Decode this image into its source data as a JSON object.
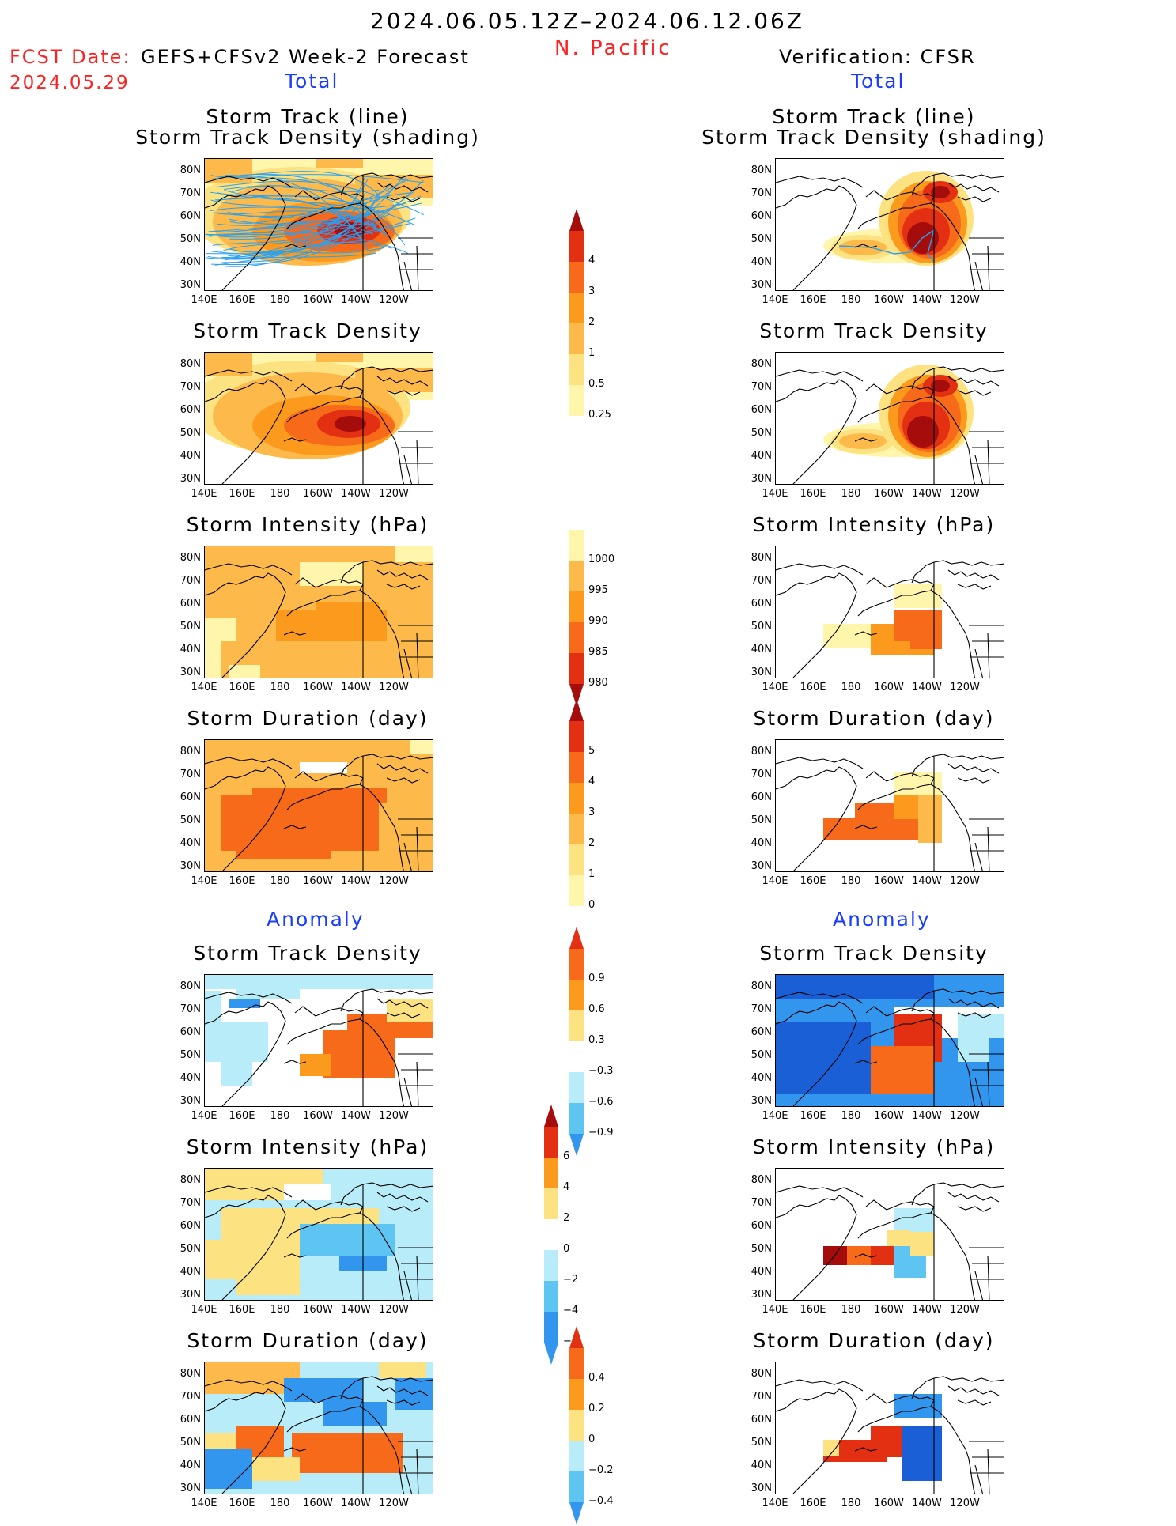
{
  "header": {
    "period": "2024.06.05.12Z–2024.06.12.06Z",
    "region": "N. Pacific",
    "fcst_label": "FCST Date:",
    "fcst_model": "GEFS+CFSv2 Week-2 Forecast",
    "fcst_date": "2024.05.29",
    "verification": "Verification: CFSR"
  },
  "sections": {
    "total_left": "Total",
    "total_right": "Total",
    "anomaly_left": "Anomaly",
    "anomaly_right": "Anomaly"
  },
  "titles": {
    "track_line": "Storm Track (line)",
    "track_shading": "Storm Track Density (shading)",
    "density": "Storm Track Density",
    "intensity": "Storm Intensity (hPa)",
    "duration": "Storm Duration (day)"
  },
  "axes": {
    "lat": [
      "80N",
      "70N",
      "60N",
      "50N",
      "40N",
      "30N"
    ],
    "lon": [
      "140E",
      "160E",
      "180",
      "160W",
      "140W",
      "120W"
    ]
  },
  "colorbars": {
    "density_total": [
      "4",
      "3",
      "2",
      "1",
      "0.5",
      "0.25"
    ],
    "intensity_total": [
      "1000",
      "995",
      "990",
      "985",
      "980"
    ],
    "duration_total": [
      "5",
      "4",
      "3",
      "2",
      "1",
      "0"
    ],
    "density_anom": [
      "0.9",
      "0.6",
      "0.3",
      "−0.3",
      "−0.6",
      "−0.9"
    ],
    "intensity_anom": [
      "6",
      "4",
      "2",
      "0",
      "−2",
      "−4",
      "−6"
    ],
    "duration_anom": [
      "0.4",
      "0.2",
      "0",
      "−0.2",
      "−0.4"
    ]
  },
  "colors": {
    "light_yellow": "#fff5ab",
    "yellow": "#fce280",
    "orange_light": "#fdb94a",
    "orange": "#fb9a1d",
    "orange_red": "#f66a1a",
    "red": "#e43012",
    "dark_red": "#a50d0d",
    "light_blue": "#b8ecf8",
    "mid_blue": "#5ec4f2",
    "blue": "#3296ef",
    "dark_blue": "#1a5fd6",
    "track_line": "#2aa0f0",
    "header_red": "#ff2020",
    "label_blue": "#1a3cff"
  }
}
